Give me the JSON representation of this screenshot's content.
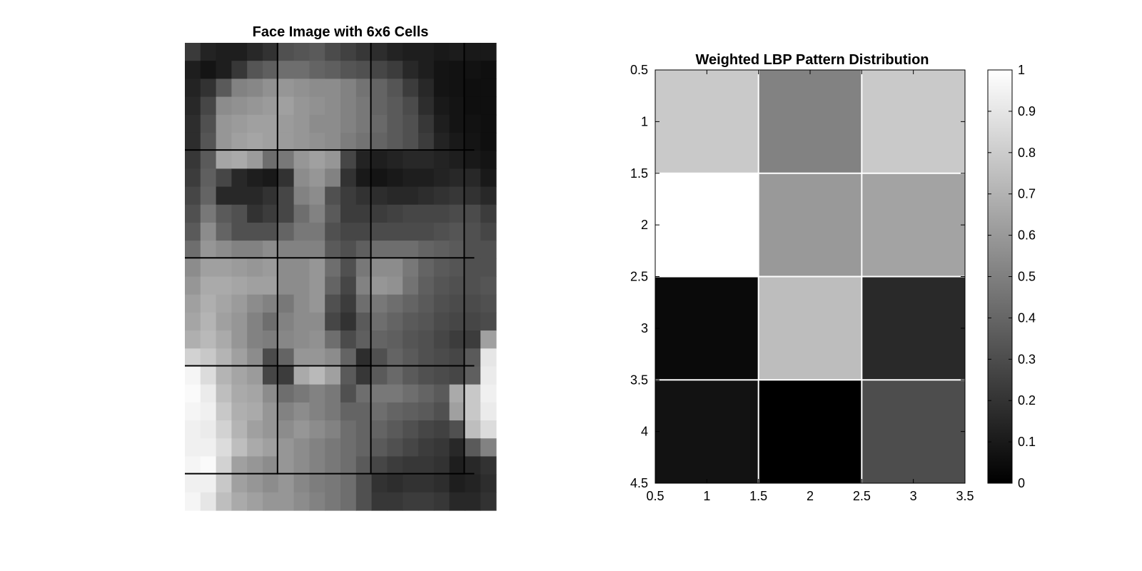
{
  "chart_data": [
    {
      "type": "heatmap",
      "title": "Face Image with 6x6 Cells",
      "colormap": "gray",
      "axes_visible": false,
      "grid_overlay": {
        "vertical_columns": [
          6,
          12,
          18
        ],
        "horizontal_rows": [
          6,
          12,
          18,
          24
        ],
        "color": "#000000"
      },
      "pixels": [
        [
          58,
          35,
          30,
          30,
          40,
          50,
          80,
          85,
          90,
          75,
          65,
          55,
          45,
          35,
          30,
          30,
          25,
          28,
          25,
          25
        ],
        [
          30,
          20,
          30,
          55,
          85,
          95,
          110,
          110,
          100,
          95,
          85,
          80,
          70,
          60,
          40,
          30,
          20,
          18,
          18,
          15
        ],
        [
          35,
          50,
          90,
          130,
          135,
          145,
          150,
          145,
          140,
          140,
          130,
          115,
          100,
          85,
          60,
          40,
          20,
          18,
          15,
          15
        ],
        [
          40,
          70,
          140,
          145,
          150,
          155,
          160,
          150,
          145,
          140,
          130,
          120,
          100,
          90,
          75,
          45,
          25,
          20,
          15,
          15
        ],
        [
          45,
          80,
          150,
          155,
          160,
          160,
          155,
          150,
          140,
          140,
          130,
          120,
          105,
          90,
          80,
          55,
          30,
          20,
          18,
          15
        ],
        [
          45,
          85,
          150,
          160,
          165,
          160,
          155,
          150,
          145,
          140,
          125,
          115,
          100,
          90,
          80,
          60,
          35,
          25,
          20,
          15
        ],
        [
          55,
          90,
          165,
          170,
          155,
          110,
          120,
          150,
          160,
          150,
          70,
          35,
          30,
          35,
          40,
          40,
          35,
          30,
          25,
          20
        ],
        [
          60,
          95,
          70,
          40,
          30,
          25,
          50,
          140,
          150,
          130,
          50,
          25,
          20,
          25,
          30,
          30,
          35,
          40,
          40,
          25
        ],
        [
          70,
          100,
          40,
          40,
          40,
          50,
          70,
          130,
          140,
          80,
          60,
          50,
          45,
          40,
          40,
          45,
          50,
          55,
          50,
          40
        ],
        [
          80,
          120,
          90,
          80,
          50,
          60,
          70,
          110,
          130,
          90,
          60,
          60,
          60,
          65,
          70,
          70,
          70,
          75,
          75,
          60
        ],
        [
          90,
          140,
          100,
          80,
          80,
          80,
          100,
          120,
          120,
          80,
          70,
          70,
          75,
          75,
          75,
          75,
          80,
          85,
          80,
          70
        ],
        [
          110,
          150,
          140,
          130,
          130,
          140,
          130,
          130,
          130,
          90,
          80,
          95,
          110,
          110,
          110,
          100,
          95,
          90,
          80,
          80
        ],
        [
          140,
          160,
          160,
          155,
          150,
          155,
          140,
          140,
          150,
          110,
          80,
          120,
          140,
          140,
          120,
          100,
          90,
          85,
          80,
          80
        ],
        [
          150,
          170,
          170,
          165,
          160,
          160,
          140,
          140,
          150,
          100,
          70,
          130,
          150,
          145,
          115,
          95,
          85,
          80,
          80,
          85
        ],
        [
          160,
          175,
          165,
          155,
          140,
          130,
          120,
          140,
          150,
          80,
          60,
          110,
          120,
          110,
          100,
          90,
          80,
          75,
          75,
          80
        ],
        [
          165,
          180,
          160,
          150,
          130,
          110,
          130,
          140,
          140,
          70,
          50,
          90,
          110,
          100,
          90,
          85,
          75,
          70,
          70,
          75
        ],
        [
          175,
          185,
          170,
          150,
          130,
          125,
          135,
          140,
          145,
          110,
          75,
          95,
          100,
          95,
          85,
          80,
          70,
          60,
          60,
          160
        ],
        [
          210,
          200,
          180,
          160,
          140,
          75,
          100,
          150,
          150,
          140,
          100,
          45,
          80,
          100,
          90,
          80,
          75,
          70,
          90,
          230
        ],
        [
          245,
          220,
          180,
          165,
          155,
          70,
          60,
          170,
          185,
          160,
          90,
          55,
          90,
          105,
          90,
          80,
          75,
          70,
          95,
          235
        ],
        [
          250,
          235,
          190,
          170,
          165,
          140,
          110,
          120,
          130,
          120,
          80,
          110,
          120,
          120,
          110,
          100,
          90,
          170,
          200,
          240
        ],
        [
          245,
          240,
          200,
          175,
          170,
          150,
          130,
          140,
          130,
          120,
          100,
          100,
          110,
          100,
          95,
          90,
          80,
          160,
          200,
          235
        ],
        [
          240,
          235,
          210,
          180,
          160,
          150,
          140,
          150,
          140,
          130,
          110,
          100,
          100,
          90,
          80,
          70,
          65,
          80,
          190,
          220
        ],
        [
          240,
          240,
          220,
          190,
          170,
          160,
          150,
          140,
          130,
          120,
          110,
          100,
          90,
          80,
          70,
          60,
          55,
          40,
          90,
          130
        ],
        [
          245,
          250,
          210,
          160,
          150,
          140,
          150,
          140,
          130,
          120,
          110,
          90,
          70,
          60,
          55,
          55,
          50,
          30,
          40,
          50
        ],
        [
          240,
          240,
          200,
          160,
          150,
          140,
          150,
          135,
          125,
          120,
          110,
          80,
          50,
          45,
          50,
          50,
          45,
          30,
          35,
          45
        ],
        [
          245,
          230,
          190,
          170,
          160,
          150,
          150,
          140,
          130,
          120,
          110,
          80,
          55,
          55,
          60,
          60,
          55,
          40,
          40,
          50
        ]
      ]
    },
    {
      "type": "heatmap",
      "title": "Weighted LBP Pattern Distribution",
      "colormap": "gray",
      "x_ticks": [
        "0.5",
        "1",
        "1.5",
        "2",
        "2.5",
        "3",
        "3.5"
      ],
      "y_ticks": [
        "0.5",
        "1",
        "1.5",
        "2",
        "2.5",
        "3",
        "3.5",
        "4",
        "4.5"
      ],
      "xlim": [
        0.5,
        3.5
      ],
      "ylim": [
        0.5,
        4.5
      ],
      "grid": true,
      "grid_color": "#ffffff",
      "values": [
        [
          0.79,
          0.51,
          0.79
        ],
        [
          1.0,
          0.6,
          0.64
        ],
        [
          0.04,
          0.74,
          0.16
        ],
        [
          0.07,
          0.0,
          0.3
        ]
      ],
      "colorbar": {
        "ticks": [
          "0",
          "0.1",
          "0.2",
          "0.3",
          "0.4",
          "0.5",
          "0.6",
          "0.7",
          "0.8",
          "0.9",
          "1"
        ],
        "range": [
          0,
          1
        ]
      }
    }
  ]
}
